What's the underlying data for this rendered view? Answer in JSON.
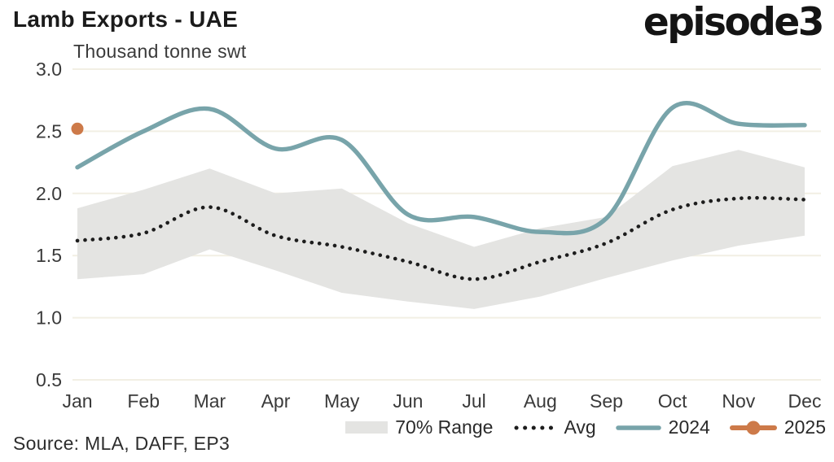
{
  "header": {
    "title": "Lamb Exports - UAE",
    "logo": "episode3"
  },
  "chart_data": {
    "type": "line",
    "title": "Lamb Exports - UAE",
    "unit_label": "Thousand tonne swt",
    "categories": [
      "Jan",
      "Feb",
      "Mar",
      "Apr",
      "May",
      "Jun",
      "Jul",
      "Aug",
      "Sep",
      "Oct",
      "Nov",
      "Dec"
    ],
    "ylim": [
      0.5,
      3.0
    ],
    "yticks": [
      "3.0",
      "2.5",
      "2.0",
      "1.5",
      "1.0",
      "0.5"
    ],
    "grid": "horizontal-only",
    "gridline_color": "#F2EFE4",
    "legend_position": "bottom",
    "band": {
      "name": "70% Range",
      "color": "#E4E4E2",
      "upper": [
        1.88,
        2.03,
        2.2,
        2.0,
        2.04,
        1.76,
        1.57,
        1.72,
        1.81,
        2.22,
        2.35,
        2.21
      ],
      "lower": [
        1.31,
        1.35,
        1.55,
        1.38,
        1.2,
        1.13,
        1.07,
        1.17,
        1.32,
        1.46,
        1.58,
        1.66
      ]
    },
    "series": [
      {
        "name": "Avg",
        "style": "dotted",
        "color": "#1d1d1d",
        "values": [
          1.62,
          1.68,
          1.89,
          1.66,
          1.57,
          1.45,
          1.31,
          1.45,
          1.6,
          1.87,
          1.96,
          1.95
        ]
      },
      {
        "name": "2024",
        "style": "solid",
        "color": "#78A4AA",
        "values": [
          2.21,
          2.5,
          2.68,
          2.36,
          2.43,
          1.83,
          1.81,
          1.69,
          1.8,
          2.69,
          2.56,
          2.55
        ]
      },
      {
        "name": "2025",
        "style": "point",
        "color": "#CD7A49",
        "values": [
          2.52
        ]
      }
    ]
  },
  "legend": {
    "items": [
      {
        "label": "70% Range",
        "sample": "band-swatch"
      },
      {
        "label": "Avg",
        "sample": "dotted-line"
      },
      {
        "label": "2024",
        "sample": "solid-line"
      },
      {
        "label": "2025",
        "sample": "line-with-dot"
      }
    ]
  },
  "footer": {
    "source": "Source: MLA, DAFF, EP3"
  }
}
